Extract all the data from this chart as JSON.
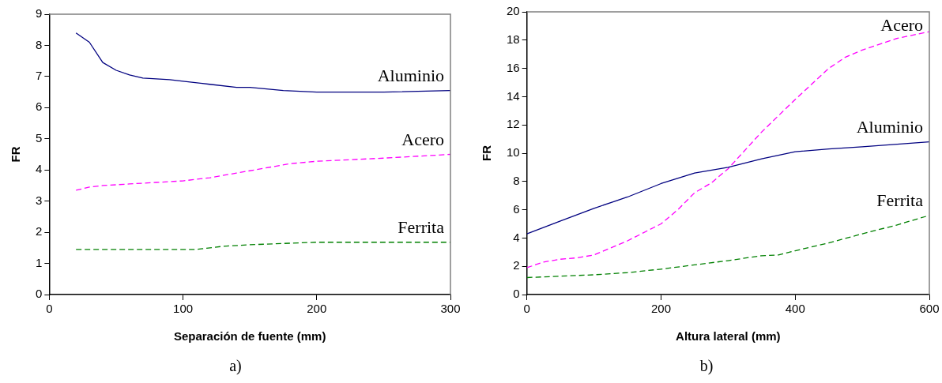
{
  "chart_data": [
    {
      "type": "line",
      "xlabel": "Separación de fuente (mm)",
      "ylabel": "FR",
      "xlim": [
        0,
        300
      ],
      "xticks": [
        0,
        100,
        200,
        300
      ],
      "ylim": [
        0,
        9
      ],
      "yticks": [
        0,
        1,
        2,
        3,
        4,
        5,
        6,
        7,
        8,
        9
      ],
      "grid": false,
      "legend": false,
      "marker": "none",
      "series": [
        {
          "name": "Aluminio",
          "color": "#000080",
          "line_style": "solid",
          "x": [
            20,
            30,
            40,
            50,
            60,
            70,
            90,
            100,
            120,
            140,
            150,
            175,
            200,
            250,
            300
          ],
          "values": [
            8.4,
            8.1,
            7.45,
            7.2,
            7.05,
            6.95,
            6.9,
            6.85,
            6.75,
            6.65,
            6.65,
            6.55,
            6.5,
            6.5,
            6.55
          ]
        },
        {
          "name": "Acero",
          "color": "#ff00ff",
          "line_style": "dashed",
          "x": [
            20,
            30,
            40,
            60,
            80,
            100,
            120,
            140,
            160,
            180,
            200,
            250,
            300
          ],
          "values": [
            3.35,
            3.45,
            3.5,
            3.55,
            3.6,
            3.65,
            3.75,
            3.9,
            4.05,
            4.2,
            4.28,
            4.38,
            4.5
          ]
        },
        {
          "name": "Ferrita",
          "color": "#008000",
          "line_style": "dashed",
          "x": [
            20,
            100,
            110,
            130,
            150,
            200,
            300
          ],
          "values": [
            1.45,
            1.45,
            1.45,
            1.55,
            1.6,
            1.68,
            1.68
          ]
        }
      ],
      "annotations": [
        "a)"
      ]
    },
    {
      "type": "line",
      "xlabel": "Altura lateral (mm)",
      "ylabel": "FR",
      "xlim": [
        0,
        600
      ],
      "xticks": [
        0,
        200,
        400,
        600
      ],
      "ylim": [
        0,
        20
      ],
      "yticks": [
        0,
        2,
        4,
        6,
        8,
        10,
        12,
        14,
        16,
        18,
        20
      ],
      "grid": false,
      "legend": false,
      "marker": "none",
      "series": [
        {
          "name": "Aluminio",
          "color": "#000080",
          "line_style": "solid",
          "x": [
            0,
            50,
            100,
            150,
            200,
            250,
            300,
            350,
            400,
            450,
            500,
            600
          ],
          "values": [
            4.3,
            5.2,
            6.1,
            6.9,
            7.85,
            8.6,
            9.0,
            9.6,
            10.1,
            10.3,
            10.45,
            10.8
          ]
        },
        {
          "name": "Acero",
          "color": "#ff00ff",
          "line_style": "dashed",
          "x": [
            0,
            25,
            50,
            75,
            100,
            150,
            200,
            225,
            250,
            275,
            300,
            350,
            400,
            450,
            475,
            500,
            550,
            600
          ],
          "values": [
            1.9,
            2.3,
            2.5,
            2.6,
            2.8,
            3.8,
            5.0,
            6.0,
            7.2,
            7.9,
            8.9,
            11.5,
            13.8,
            16.0,
            16.8,
            17.3,
            18.1,
            18.6
          ]
        },
        {
          "name": "Ferrita",
          "color": "#008000",
          "line_style": "dashed",
          "x": [
            0,
            50,
            100,
            150,
            200,
            250,
            300,
            350,
            375,
            400,
            450,
            500,
            550,
            600
          ],
          "values": [
            1.2,
            1.3,
            1.4,
            1.55,
            1.8,
            2.1,
            2.4,
            2.75,
            2.8,
            3.1,
            3.65,
            4.3,
            4.9,
            5.6
          ]
        }
      ],
      "annotations": [
        "b)"
      ]
    }
  ]
}
